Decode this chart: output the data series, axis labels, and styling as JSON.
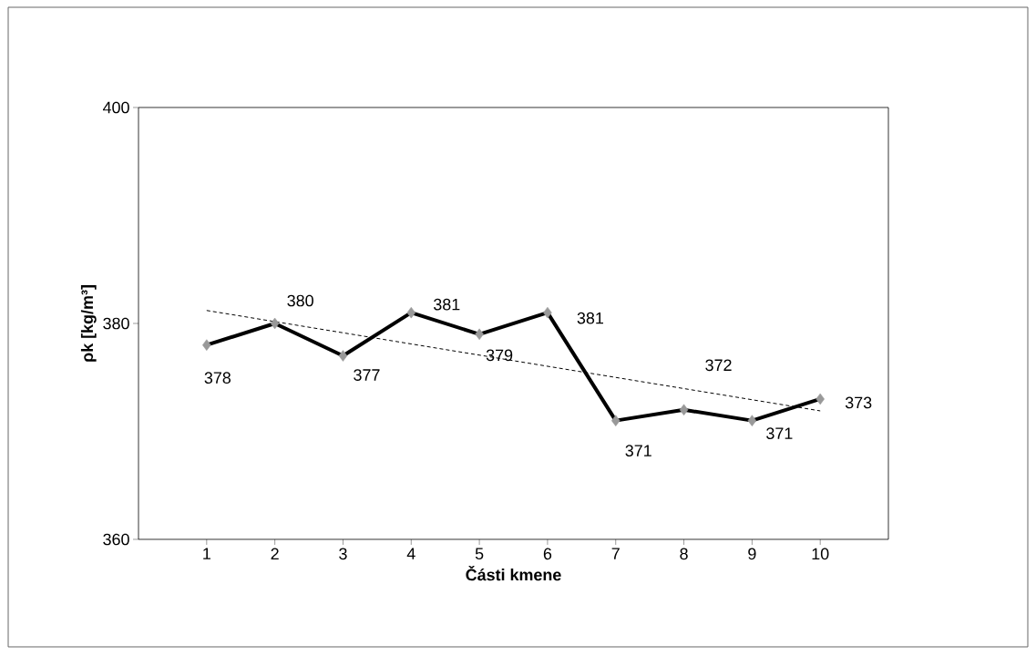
{
  "chart_data": {
    "type": "line",
    "xlabel": "Části kmene",
    "ylabel": "ρk [kg/m³]",
    "categories": [
      "1",
      "2",
      "3",
      "4",
      "5",
      "6",
      "7",
      "8",
      "9",
      "10"
    ],
    "series": [
      {
        "color": "#000000",
        "marker": "diamond",
        "values": [
          378,
          380,
          377,
          381,
          379,
          381,
          371,
          372,
          371,
          373
        ],
        "value_labels": [
          "378",
          "380",
          "377",
          "381",
          "379",
          "381",
          "371",
          "372",
          "371",
          "373"
        ]
      },
      {
        "type": "line",
        "color": "#000000",
        "line_style": "dashed",
        "marker": "none",
        "values": [
          381.2,
          null,
          null,
          null,
          null,
          null,
          null,
          null,
          null,
          371.9
        ]
      }
    ],
    "ylim": [
      360,
      400
    ],
    "yticks": [
      360,
      380,
      400
    ],
    "grid": false
  }
}
